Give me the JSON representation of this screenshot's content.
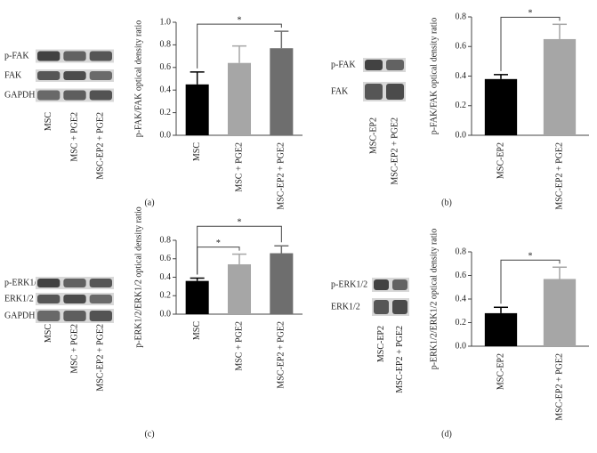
{
  "chart_data": [
    {
      "type": "bar",
      "panel": "(a)",
      "ylabel": "p-FAK/FAK optical density ratio",
      "categories": [
        "MSC",
        "MSC + PGE2",
        "MSC-EP2 + PGE2"
      ],
      "values": [
        0.45,
        0.64,
        0.77
      ],
      "errors": [
        0.11,
        0.15,
        0.15
      ],
      "colors": [
        "#000000",
        "#a6a6a6",
        "#6e6e6e"
      ],
      "ylim": [
        0,
        1.0
      ],
      "yticks": [
        {
          "value": 0,
          "label": "0.0"
        },
        0.2,
        0.4,
        0.6,
        0.8,
        {
          "value": 1.0,
          "label": "1.0"
        }
      ],
      "significance": [
        {
          "pair": [
            "MSC",
            "MSC-EP2 + PGE2"
          ],
          "label": "*"
        }
      ],
      "blot": {
        "rows": [
          "p-FAK",
          "FAK",
          "GAPDH"
        ],
        "lanes": [
          "MSC",
          "MSC + PGE2",
          "MSC-EP2 + PGE2"
        ]
      }
    },
    {
      "type": "bar",
      "panel": "(b)",
      "ylabel": "p-FAK/FAK optical density ratio",
      "categories": [
        "MSC-EP2",
        "MSC-EP2 + PGE2"
      ],
      "values": [
        0.38,
        0.65
      ],
      "errors": [
        0.03,
        0.1
      ],
      "colors": [
        "#000000",
        "#a6a6a6"
      ],
      "ylim": [
        0,
        0.8
      ],
      "yticks": [
        {
          "value": 0,
          "label": "0.0"
        },
        0.2,
        0.4,
        0.6,
        0.8
      ],
      "significance": [
        {
          "pair": [
            "MSC-EP2",
            "MSC-EP2 + PGE2"
          ],
          "label": "*"
        }
      ],
      "blot": {
        "rows": [
          "p-FAK",
          "FAK"
        ],
        "lanes": [
          "MSC-EP2",
          "MSC-EP2 + PGE2"
        ]
      }
    },
    {
      "type": "bar",
      "panel": "(c)",
      "ylabel": "p-ERK1/2/ERK1/2 optical density ratio",
      "categories": [
        "MSC",
        "MSC + PGE2",
        "MSC-EP2 + PGE2"
      ],
      "values": [
        0.36,
        0.54,
        0.66
      ],
      "errors": [
        0.03,
        0.11,
        0.08
      ],
      "colors": [
        "#000000",
        "#a6a6a6",
        "#6e6e6e"
      ],
      "ylim": [
        0,
        0.8
      ],
      "yticks": [
        {
          "value": 0,
          "label": "0.0"
        },
        0.2,
        0.4,
        0.6,
        0.8
      ],
      "significance": [
        {
          "pair": [
            "MSC",
            "MSC + PGE2"
          ],
          "label": "*"
        },
        {
          "pair": [
            "MSC",
            "MSC-EP2 + PGE2"
          ],
          "label": "*"
        }
      ],
      "blot": {
        "rows": [
          "p-ERK1/2",
          "ERK1/2",
          "GAPDH"
        ],
        "lanes": [
          "MSC",
          "MSC + PGE2",
          "MSC-EP2 + PGE2"
        ]
      }
    },
    {
      "type": "bar",
      "panel": "(d)",
      "ylabel": "p-ERK1/2/ERK1/2 optical density ratio",
      "categories": [
        "MSC-EP2",
        "MSC-EP2 + PGE2"
      ],
      "values": [
        0.28,
        0.57
      ],
      "errors": [
        0.05,
        0.1
      ],
      "colors": [
        "#000000",
        "#a6a6a6"
      ],
      "ylim": [
        0,
        0.8
      ],
      "yticks": [
        {
          "value": 0,
          "label": "0.0"
        },
        0.2,
        0.4,
        0.6,
        0.8
      ],
      "significance": [
        {
          "pair": [
            "MSC-EP2",
            "MSC-EP2 + PGE2"
          ],
          "label": "*"
        }
      ],
      "blot": {
        "rows": [
          "p-ERK1/2",
          "ERK1/2"
        ],
        "lanes": [
          "MSC-EP2",
          "MSC-EP2 + PGE2"
        ]
      }
    }
  ]
}
